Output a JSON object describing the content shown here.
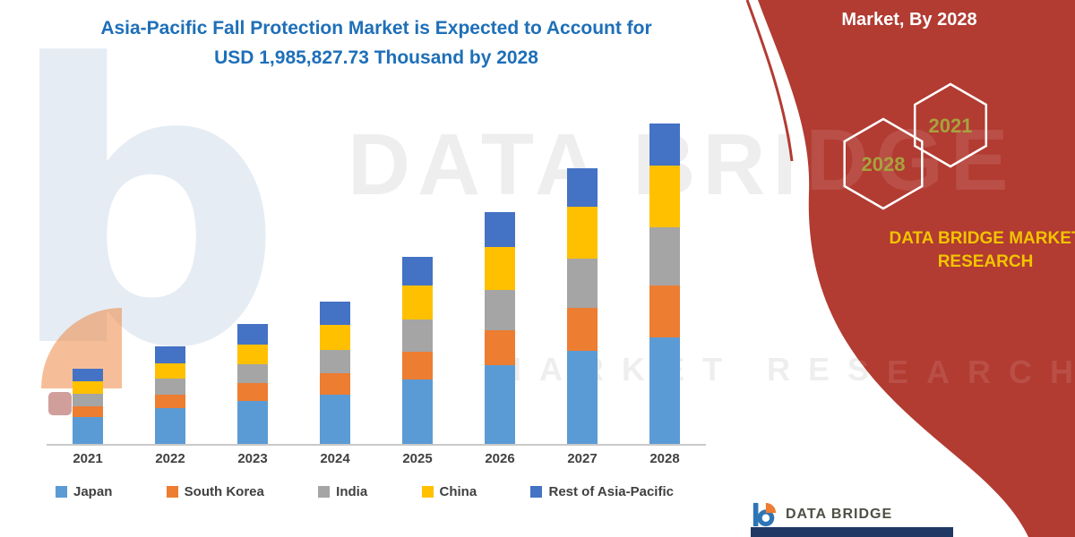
{
  "title": {
    "line1": "Asia-Pacific Fall Protection Market is Expected to Account for",
    "line2": "USD 1,985,827.73 Thousand by 2028"
  },
  "watermark": {
    "logo_glyph": "b",
    "line1": "DATA BRIDGE",
    "line2": "MARKET RESEARCH"
  },
  "panel": {
    "header": "Market, By 2028",
    "background_color": "#B23B32",
    "hexagons": [
      {
        "label": "2028"
      },
      {
        "label": "2021"
      }
    ],
    "hexagon_label_color": "#A8A23E",
    "brand_line1": "DATA BRIDGE MARKET",
    "brand_line2": "RESEARCH",
    "brand_color": "#F2C400"
  },
  "footer": {
    "logo_text": "DATA BRIDGE"
  },
  "chart_data": {
    "type": "bar",
    "stacked": true,
    "title": "Asia-Pacific Fall Protection Market is Expected to Account for USD 1,985,827.73 Thousand by 2028",
    "xlabel": "",
    "ylabel": "",
    "y_axis_visible": false,
    "value_units": "relative (no y-axis labels shown in figure)",
    "ylim": [
      0,
      380
    ],
    "legend_position": "bottom",
    "categories": [
      "2021",
      "2022",
      "2023",
      "2024",
      "2025",
      "2026",
      "2027",
      "2028"
    ],
    "series": [
      {
        "name": "Japan",
        "color": "#5B9BD5",
        "values": [
          30,
          40,
          48,
          55,
          72,
          88,
          105,
          120
        ]
      },
      {
        "name": "South Korea",
        "color": "#ED7D31",
        "values": [
          12,
          15,
          20,
          24,
          32,
          40,
          48,
          58
        ]
      },
      {
        "name": "India",
        "color": "#A5A5A5",
        "values": [
          14,
          18,
          22,
          27,
          36,
          45,
          55,
          65
        ]
      },
      {
        "name": "China",
        "color": "#FFC000",
        "values": [
          14,
          18,
          22,
          28,
          38,
          48,
          58,
          70
        ]
      },
      {
        "name": "Rest of Asia-Pacific",
        "color": "#4472C4",
        "values": [
          15,
          19,
          23,
          26,
          32,
          39,
          44,
          47
        ]
      }
    ]
  }
}
